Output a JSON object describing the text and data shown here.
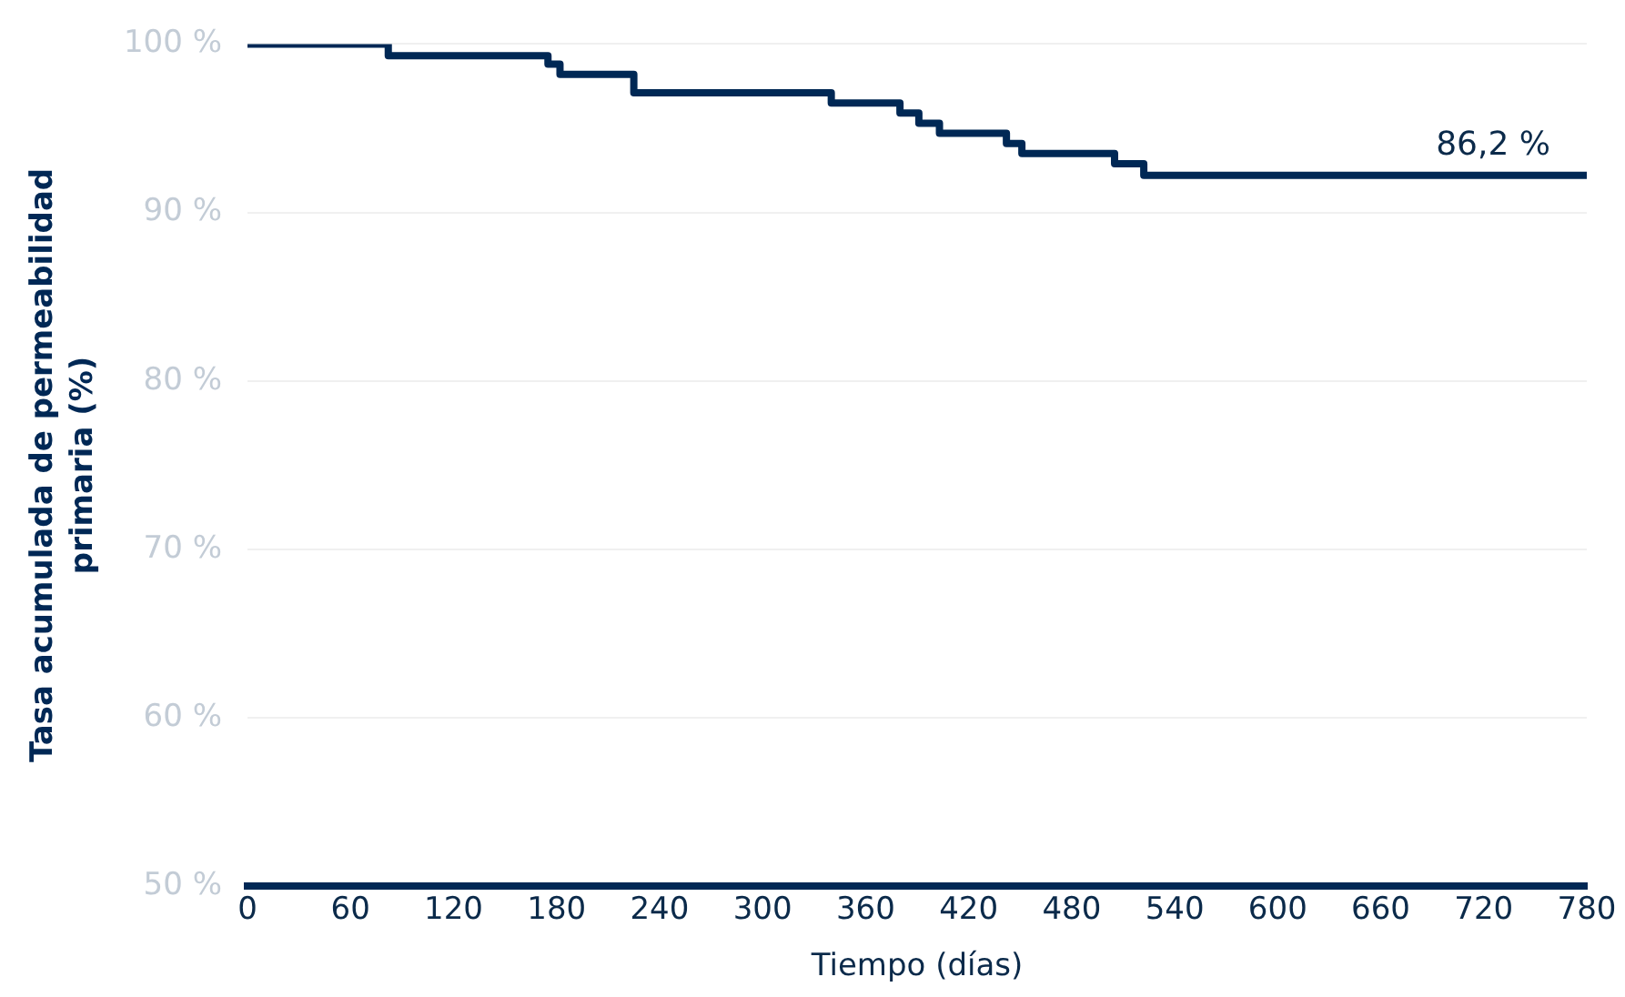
{
  "chart_data": {
    "type": "step",
    "xlabel": "Tiempo (días)",
    "ylabel": "Tasa acumulada de permeabilidad primaria (%)",
    "x": [
      0,
      82,
      175,
      182,
      225,
      340,
      380,
      391,
      403,
      442,
      451,
      505,
      522,
      780
    ],
    "series": [
      {
        "color": "#002855",
        "values": [
          100,
          99.3,
          98.8,
          98.2,
          97.1,
          96.5,
          95.9,
          95.3,
          94.7,
          94.1,
          93.5,
          92.9,
          92.2,
          92.2
        ]
      }
    ],
    "xlim": [
      0,
      780
    ],
    "xticks": [
      0,
      60,
      120,
      180,
      240,
      300,
      360,
      420,
      480,
      540,
      600,
      660,
      720,
      780
    ],
    "ylim": [
      50,
      100
    ],
    "yticks": [
      {
        "value": 50,
        "label": "50 %"
      },
      {
        "value": 60,
        "label": "60 %"
      },
      {
        "value": 70,
        "label": "70 %"
      },
      {
        "value": 80,
        "label": "80 %"
      },
      {
        "value": 90,
        "label": "90 %"
      },
      {
        "value": 100,
        "label": "100 %"
      }
    ],
    "grid": "y",
    "legend": false,
    "marker": "none",
    "line_style": "solid",
    "annotations": [
      "86,2 %"
    ]
  }
}
